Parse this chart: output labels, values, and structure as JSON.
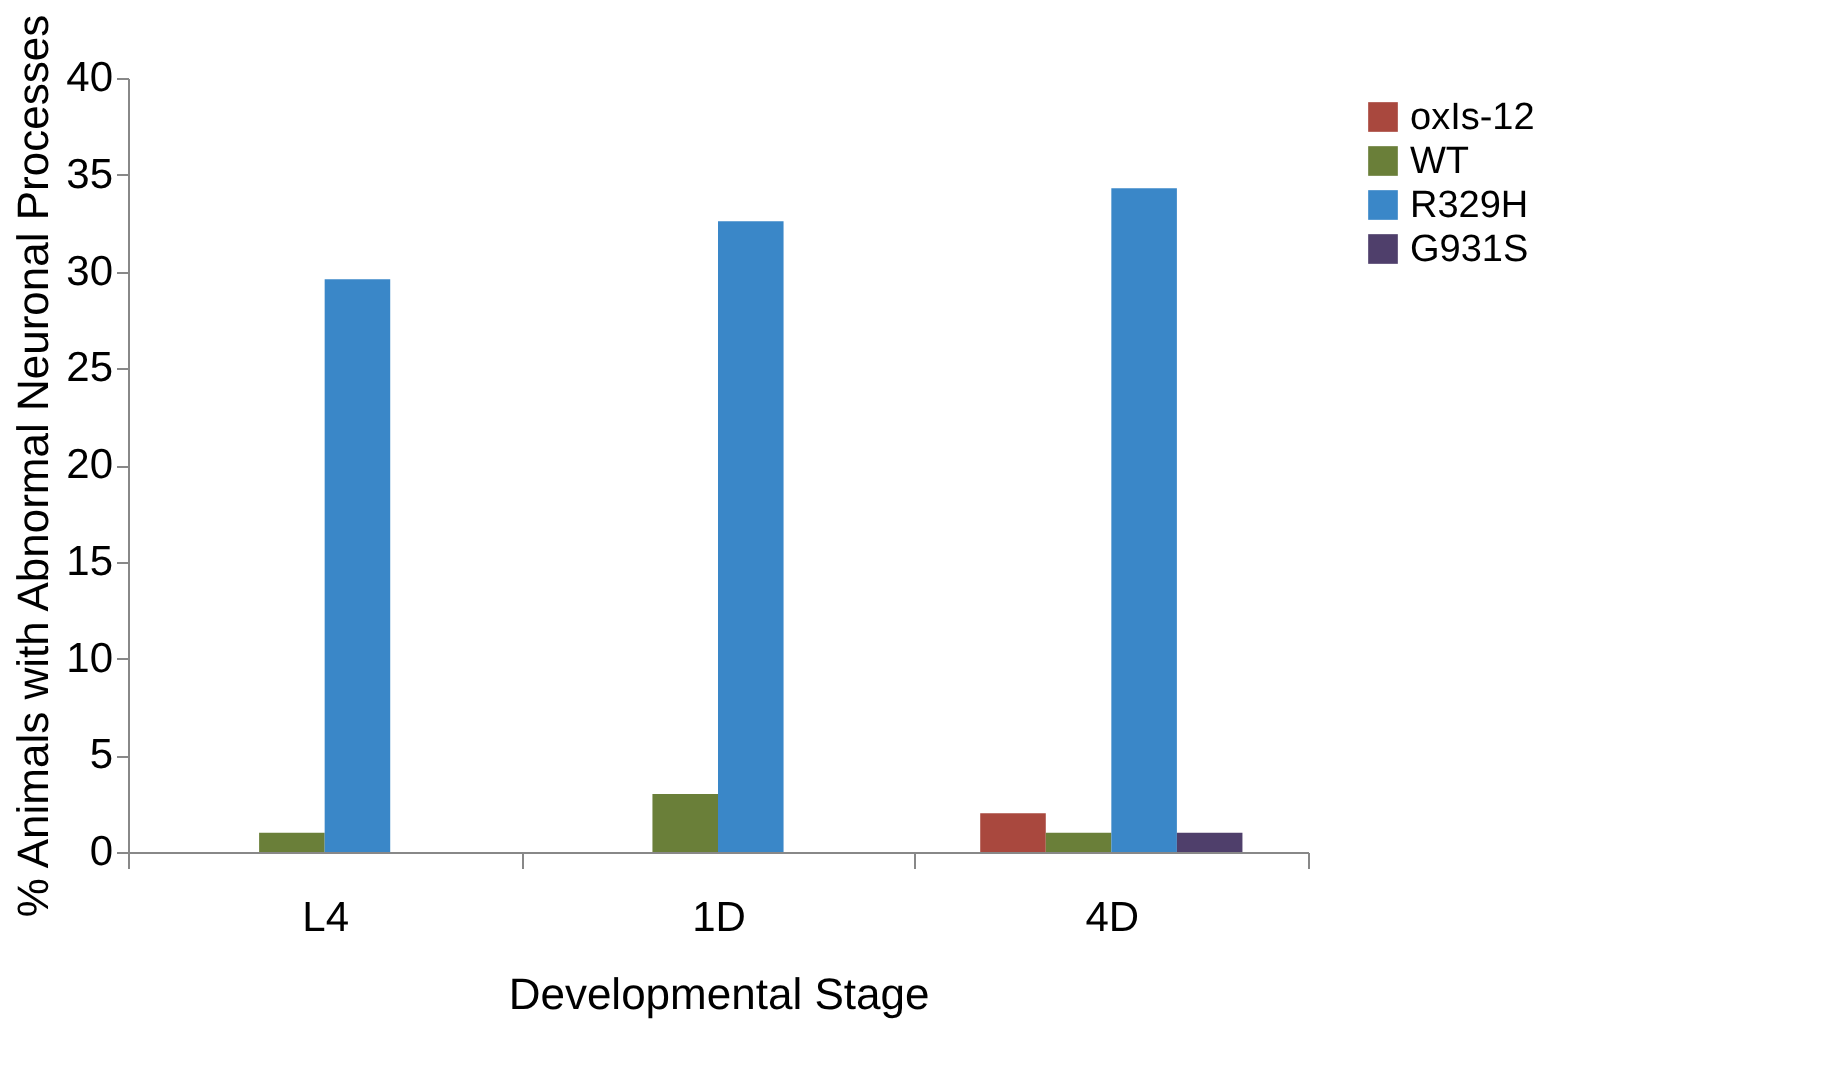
{
  "chart_data": {
    "type": "bar",
    "xlabel": "Developmental Stage",
    "ylabel": "% Animals with Abnormal Neuronal Processes",
    "categories": [
      "L4",
      "1D",
      "4D"
    ],
    "series": [
      {
        "name": "oxIs-12",
        "color": "#a9483e",
        "values": [
          0,
          0,
          2
        ]
      },
      {
        "name": "WT",
        "color": "#6a7f39",
        "values": [
          1,
          3,
          1
        ]
      },
      {
        "name": "R329H",
        "color": "#3a87c8",
        "values": [
          29.6,
          32.6,
          34.3
        ]
      },
      {
        "name": "G931S",
        "color": "#4f3f6b",
        "values": [
          0,
          0,
          1
        ]
      }
    ],
    "ylim": [
      0,
      40
    ],
    "yticks": [
      0,
      5,
      10,
      15,
      20,
      25,
      30,
      35,
      40
    ],
    "grid": false,
    "legend": "right"
  }
}
